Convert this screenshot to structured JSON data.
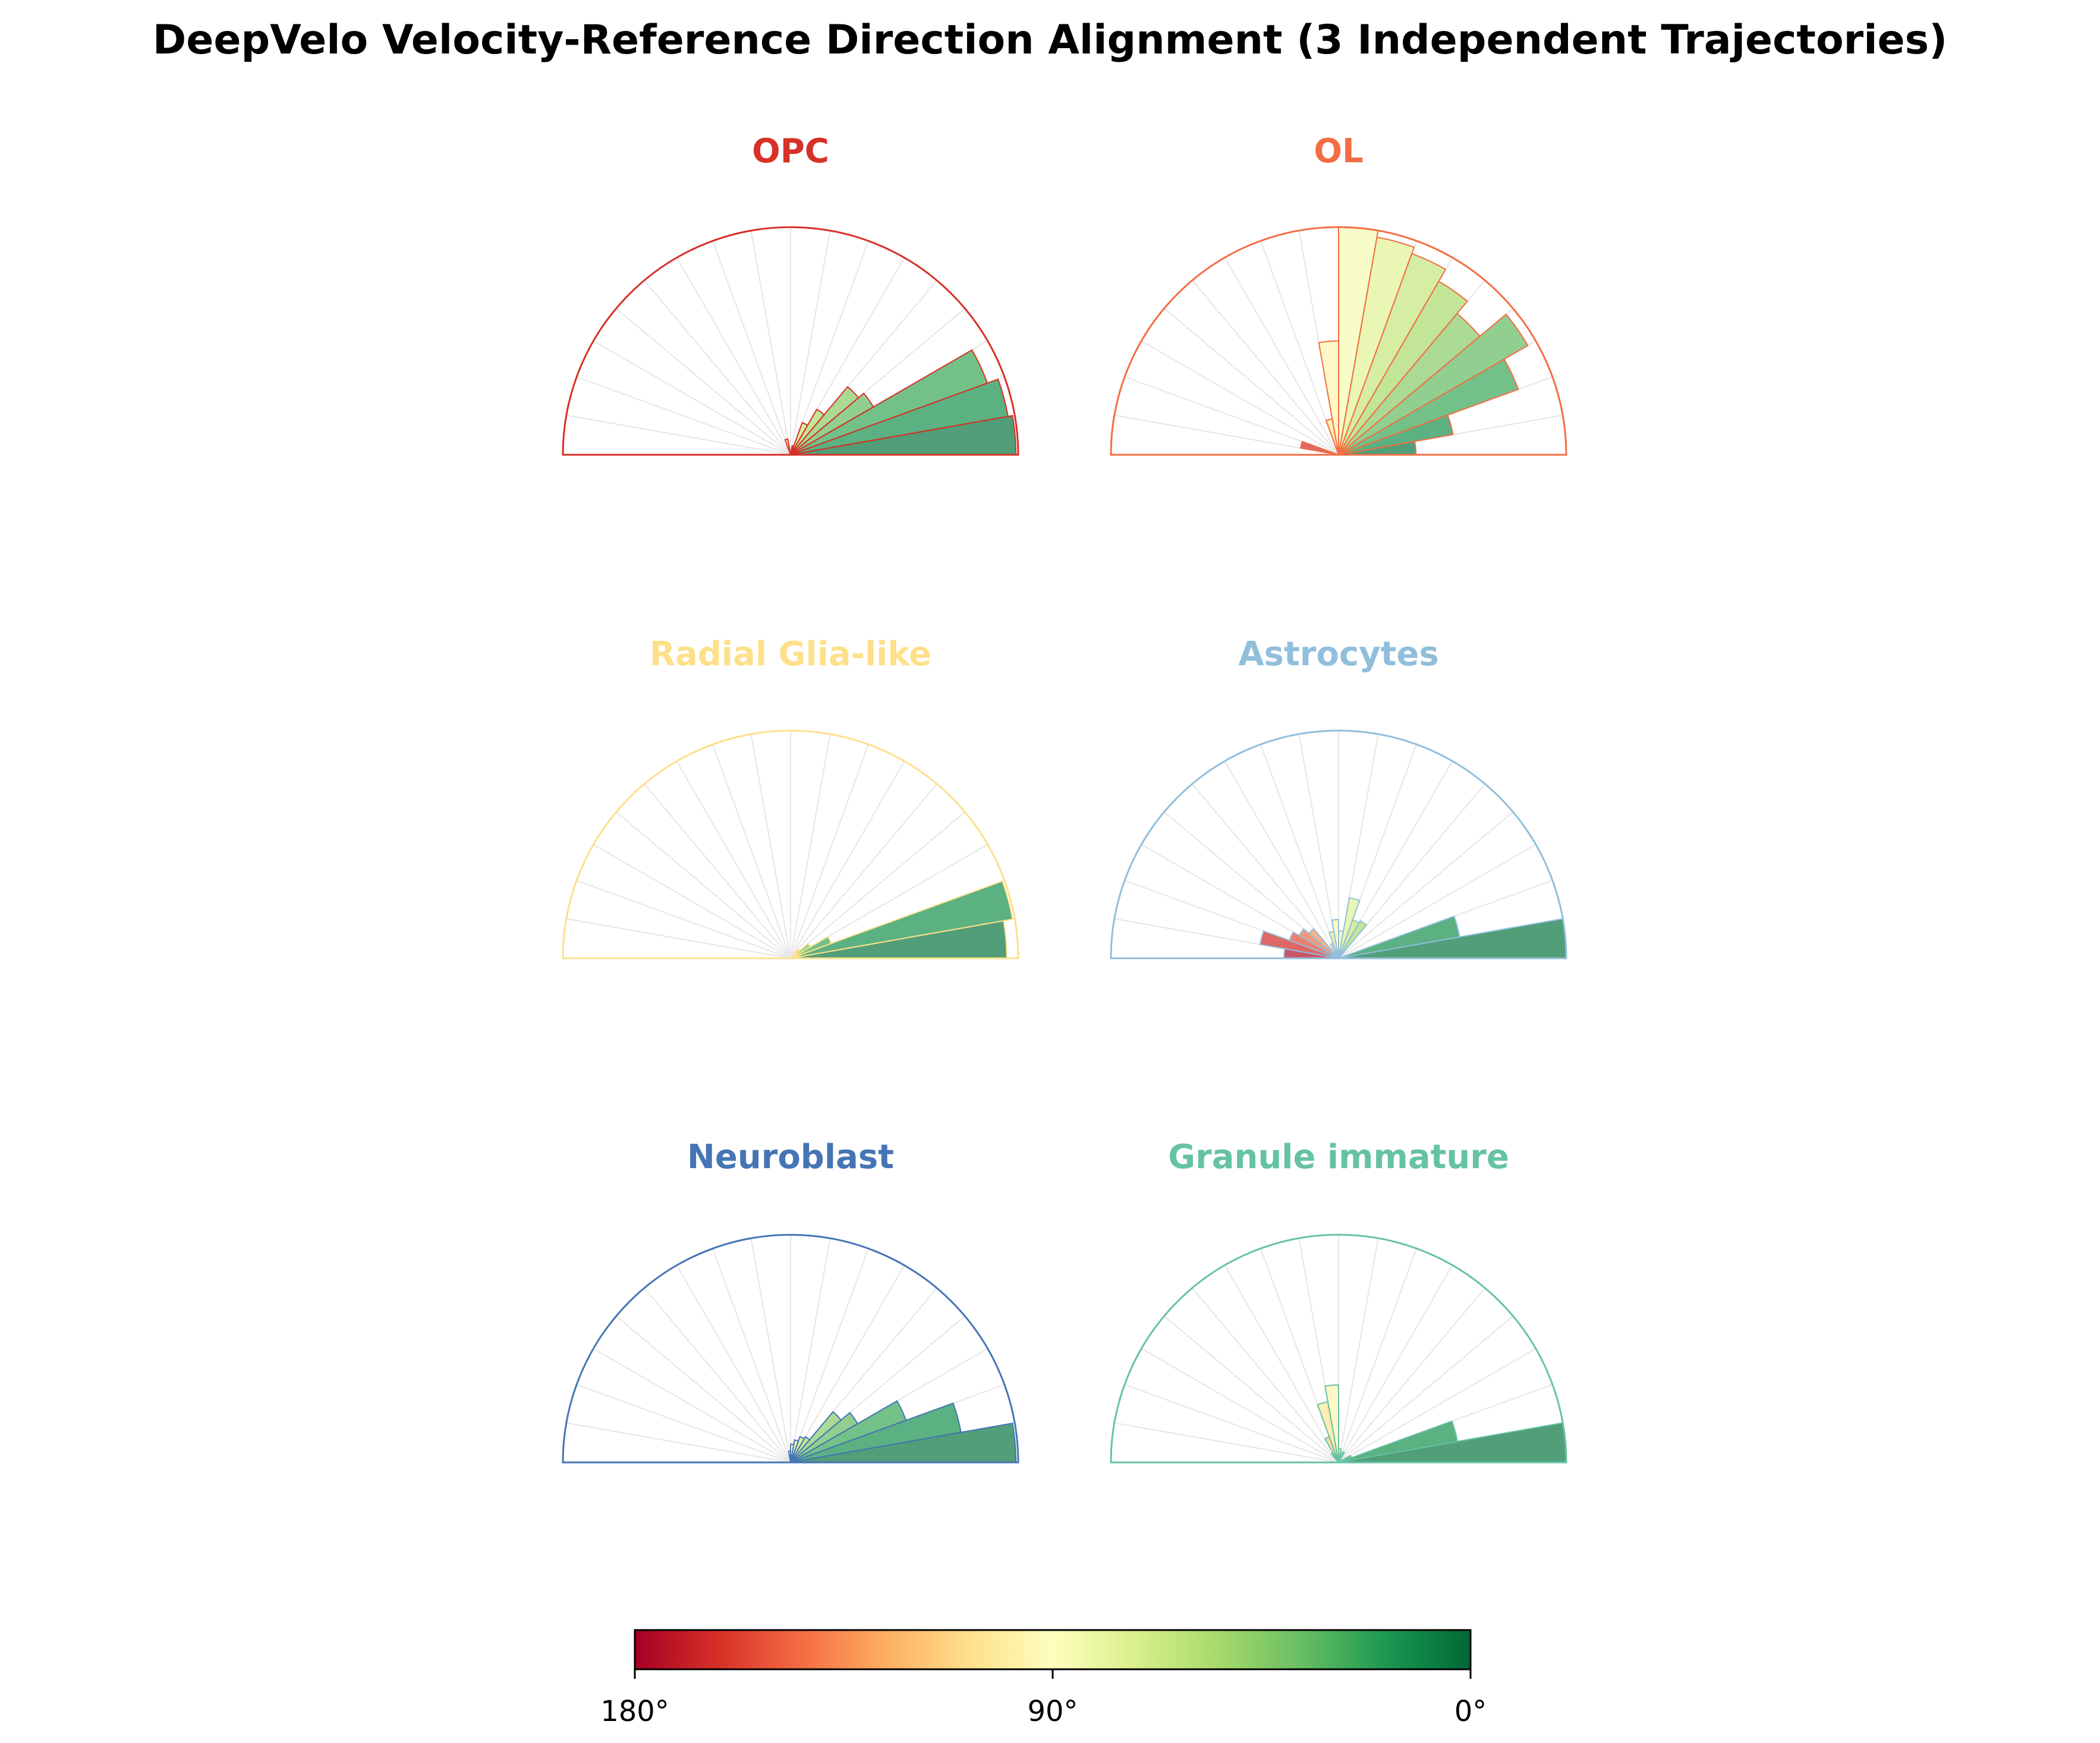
{
  "chart_data": {
    "type": "polar-histogram",
    "title": "DeepVelo Velocity-Reference Direction Alignment (3 Independent Trajectories)",
    "angle_range_deg": [
      0,
      180
    ],
    "bin_width_deg": 10,
    "radial_max": 1.0,
    "colormap": "RdYlGn_r (0° green → 90° yellow → 180° red)",
    "panels": [
      {
        "name": "OPC",
        "color": "#d73027",
        "bins": [
          {
            "angle_start": 0,
            "value": 0.99
          },
          {
            "angle_start": 10,
            "value": 0.97
          },
          {
            "angle_start": 20,
            "value": 0.92
          },
          {
            "angle_start": 30,
            "value": 0.42
          },
          {
            "angle_start": 40,
            "value": 0.39
          },
          {
            "angle_start": 50,
            "value": 0.23
          },
          {
            "angle_start": 60,
            "value": 0.15
          },
          {
            "angle_start": 70,
            "value": 0.04
          },
          {
            "angle_start": 100,
            "value": 0.07
          }
        ]
      },
      {
        "name": "OL",
        "color": "#f46d43",
        "bins": [
          {
            "angle_start": 0,
            "value": 0.34
          },
          {
            "angle_start": 10,
            "value": 0.51
          },
          {
            "angle_start": 20,
            "value": 0.84
          },
          {
            "angle_start": 30,
            "value": 0.96
          },
          {
            "angle_start": 40,
            "value": 0.81
          },
          {
            "angle_start": 50,
            "value": 0.88
          },
          {
            "angle_start": 60,
            "value": 0.94
          },
          {
            "angle_start": 70,
            "value": 0.97
          },
          {
            "angle_start": 80,
            "value": 1.0
          },
          {
            "angle_start": 90,
            "value": 0.5
          },
          {
            "angle_start": 100,
            "value": 0.16
          },
          {
            "angle_start": 160,
            "value": 0.17
          }
        ]
      },
      {
        "name": "Radial Glia-like",
        "color": "#fee08b",
        "bins": [
          {
            "angle_start": 0,
            "value": 0.95
          },
          {
            "angle_start": 10,
            "value": 0.99
          },
          {
            "angle_start": 20,
            "value": 0.19
          },
          {
            "angle_start": 30,
            "value": 0.1
          },
          {
            "angle_start": 40,
            "value": 0.05
          }
        ]
      },
      {
        "name": "Astrocytes",
        "color": "#91bfdb",
        "bins": [
          {
            "angle_start": 0,
            "value": 1.0
          },
          {
            "angle_start": 10,
            "value": 0.54
          },
          {
            "angle_start": 50,
            "value": 0.19
          },
          {
            "angle_start": 60,
            "value": 0.18
          },
          {
            "angle_start": 70,
            "value": 0.27
          },
          {
            "angle_start": 80,
            "value": 0.12
          },
          {
            "angle_start": 90,
            "value": 0.17
          },
          {
            "angle_start": 100,
            "value": 0.12
          },
          {
            "angle_start": 110,
            "value": 0.07
          },
          {
            "angle_start": 130,
            "value": 0.17
          },
          {
            "angle_start": 140,
            "value": 0.2
          },
          {
            "angle_start": 150,
            "value": 0.23
          },
          {
            "angle_start": 160,
            "value": 0.35
          },
          {
            "angle_start": 170,
            "value": 0.24
          }
        ]
      },
      {
        "name": "Neuroblast",
        "color": "#4575b4",
        "bins": [
          {
            "angle_start": 0,
            "value": 0.99
          },
          {
            "angle_start": 10,
            "value": 0.76
          },
          {
            "angle_start": 20,
            "value": 0.54
          },
          {
            "angle_start": 30,
            "value": 0.34
          },
          {
            "angle_start": 40,
            "value": 0.29
          },
          {
            "angle_start": 50,
            "value": 0.13
          },
          {
            "angle_start": 60,
            "value": 0.12
          },
          {
            "angle_start": 70,
            "value": 0.1
          },
          {
            "angle_start": 80,
            "value": 0.08
          },
          {
            "angle_start": 90,
            "value": 0.05
          }
        ]
      },
      {
        "name": "Granule immature",
        "color": "#66c2a5",
        "bins": [
          {
            "angle_start": 0,
            "value": 1.0
          },
          {
            "angle_start": 10,
            "value": 0.53
          },
          {
            "angle_start": 20,
            "value": 0.06
          },
          {
            "angle_start": 60,
            "value": 0.05
          },
          {
            "angle_start": 70,
            "value": 0.04
          },
          {
            "angle_start": 80,
            "value": 0.06
          },
          {
            "angle_start": 90,
            "value": 0.34
          },
          {
            "angle_start": 100,
            "value": 0.27
          },
          {
            "angle_start": 110,
            "value": 0.12
          },
          {
            "angle_start": 120,
            "value": 0.05
          }
        ]
      }
    ],
    "colorbar": {
      "tick_labels": [
        "180°",
        "90°",
        "0°"
      ],
      "tick_values_deg": [
        180,
        90,
        0
      ]
    }
  }
}
